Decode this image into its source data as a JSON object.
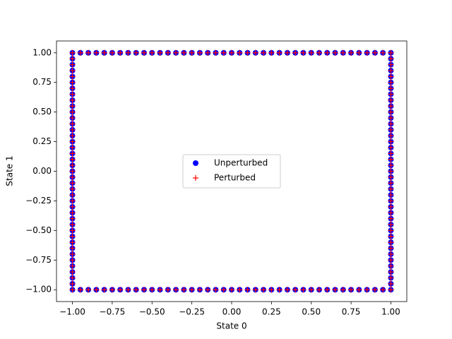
{
  "chart_data": {
    "type": "scatter",
    "xlabel": "State 0",
    "ylabel": "State 1",
    "xlim": [
      -1.1,
      1.1
    ],
    "ylim": [
      -1.1,
      1.1
    ],
    "xticks": [
      {
        "value": -1,
        "label": "−1.00"
      },
      {
        "value": -0.75,
        "label": "−0.75"
      },
      {
        "value": -0.5,
        "label": "−0.50"
      },
      {
        "value": -0.25,
        "label": "−0.25"
      },
      {
        "value": 0,
        "label": "0.00"
      },
      {
        "value": 0.25,
        "label": "0.25"
      },
      {
        "value": 0.5,
        "label": "0.50"
      },
      {
        "value": 0.75,
        "label": "0.75"
      },
      {
        "value": 1,
        "label": "1.00"
      }
    ],
    "yticks": [
      {
        "value": -1,
        "label": "−1.00"
      },
      {
        "value": -0.75,
        "label": "−0.75"
      },
      {
        "value": -0.5,
        "label": "−0.50"
      },
      {
        "value": -0.25,
        "label": "−0.25"
      },
      {
        "value": 0,
        "label": "0.00"
      },
      {
        "value": 0.25,
        "label": "0.25"
      },
      {
        "value": 0.5,
        "label": "0.50"
      },
      {
        "value": 0.75,
        "label": "0.75"
      },
      {
        "value": 1,
        "label": "1.00"
      }
    ],
    "legend": "center",
    "series": [
      {
        "name": "Unperturbed",
        "color": "#0000ff",
        "marker": "o",
        "x": [
          -1,
          -0.95,
          -0.9,
          -0.85,
          -0.8,
          -0.75,
          -0.7,
          -0.65,
          -0.6,
          -0.55,
          -0.5,
          -0.45,
          -0.4,
          -0.35,
          -0.3,
          -0.25,
          -0.2,
          -0.15,
          -0.1,
          -0.05,
          0,
          0.05,
          0.1,
          0.15,
          0.2,
          0.25,
          0.3,
          0.35,
          0.4,
          0.45,
          0.5,
          0.55,
          0.6,
          0.65,
          0.7,
          0.75,
          0.8,
          0.85,
          0.9,
          0.95,
          1,
          1,
          1,
          1,
          1,
          1,
          1,
          1,
          1,
          1,
          1,
          1,
          1,
          1,
          1,
          1,
          1,
          1,
          1,
          1,
          1,
          1,
          1,
          1,
          1,
          1,
          1,
          1,
          1,
          1,
          1,
          1,
          1,
          1,
          1,
          1,
          1,
          1,
          1,
          1,
          1,
          0.95,
          0.9,
          0.85,
          0.8,
          0.75,
          0.7,
          0.65,
          0.6,
          0.55,
          0.5,
          0.45,
          0.4,
          0.35,
          0.3,
          0.25,
          0.2,
          0.15,
          0.1,
          0.05,
          0,
          -0.05,
          -0.1,
          -0.15,
          -0.2,
          -0.25,
          -0.3,
          -0.35,
          -0.4,
          -0.45,
          -0.5,
          -0.55,
          -0.6,
          -0.65,
          -0.7,
          -0.75,
          -0.8,
          -0.85,
          -0.9,
          -0.95,
          -1,
          -1,
          -1,
          -1,
          -1,
          -1,
          -1,
          -1,
          -1,
          -1,
          -1,
          -1,
          -1,
          -1,
          -1,
          -1,
          -1,
          -1,
          -1,
          -1,
          -1,
          -1,
          -1,
          -1,
          -1,
          -1,
          -1,
          -1,
          -1,
          -1,
          -1,
          -1,
          -1,
          -1,
          -1,
          -1,
          -1,
          -1,
          -1,
          -1
        ],
        "values": [
          1,
          1,
          1,
          1,
          1,
          1,
          1,
          1,
          1,
          1,
          1,
          1,
          1,
          1,
          1,
          1,
          1,
          1,
          1,
          1,
          1,
          1,
          1,
          1,
          1,
          1,
          1,
          1,
          1,
          1,
          1,
          1,
          1,
          1,
          1,
          1,
          1,
          1,
          1,
          1,
          1,
          0.95,
          0.9,
          0.85,
          0.8,
          0.75,
          0.7,
          0.65,
          0.6,
          0.55,
          0.5,
          0.45,
          0.4,
          0.35,
          0.3,
          0.25,
          0.2,
          0.15,
          0.1,
          0.05,
          0,
          -0.05,
          -0.1,
          -0.15,
          -0.2,
          -0.25,
          -0.3,
          -0.35,
          -0.4,
          -0.45,
          -0.5,
          -0.55,
          -0.6,
          -0.65,
          -0.7,
          -0.75,
          -0.8,
          -0.85,
          -0.9,
          -0.95,
          -1,
          -1,
          -1,
          -1,
          -1,
          -1,
          -1,
          -1,
          -1,
          -1,
          -1,
          -1,
          -1,
          -1,
          -1,
          -1,
          -1,
          -1,
          -1,
          -1,
          -1,
          -1,
          -1,
          -1,
          -1,
          -1,
          -1,
          -1,
          -1,
          -1,
          -1,
          -1,
          -1,
          -1,
          -1,
          -1,
          -1,
          -1,
          -1,
          -1,
          -1,
          -0.95,
          -0.9,
          -0.85,
          -0.8,
          -0.75,
          -0.7,
          -0.65,
          -0.6,
          -0.55,
          -0.5,
          -0.45,
          -0.4,
          -0.35,
          -0.3,
          -0.25,
          -0.2,
          -0.15,
          -0.1,
          -0.05,
          0,
          0.05,
          0.1,
          0.15,
          0.2,
          0.25,
          0.3,
          0.35,
          0.4,
          0.45,
          0.5,
          0.55,
          0.6,
          0.65,
          0.7,
          0.75,
          0.8,
          0.85,
          0.9,
          0.95
        ]
      },
      {
        "name": "Perturbed",
        "color": "#ff0000",
        "marker": "+",
        "x": [
          -1,
          -0.95,
          -0.9,
          -0.85,
          -0.8,
          -0.75,
          -0.7,
          -0.65,
          -0.6,
          -0.55,
          -0.5,
          -0.45,
          -0.4,
          -0.35,
          -0.3,
          -0.25,
          -0.2,
          -0.15,
          -0.1,
          -0.05,
          0,
          0.05,
          0.1,
          0.15,
          0.2,
          0.25,
          0.3,
          0.35,
          0.4,
          0.45,
          0.5,
          0.55,
          0.6,
          0.65,
          0.7,
          0.75,
          0.8,
          0.85,
          0.9,
          0.95,
          1,
          1,
          1,
          1,
          1,
          1,
          1,
          1,
          1,
          1,
          1,
          1,
          1,
          1,
          1,
          1,
          1,
          1,
          1,
          1,
          1,
          1,
          1,
          1,
          1,
          1,
          1,
          1,
          1,
          1,
          1,
          1,
          1,
          1,
          1,
          1,
          1,
          1,
          1,
          1,
          1,
          0.95,
          0.9,
          0.85,
          0.8,
          0.75,
          0.7,
          0.65,
          0.6,
          0.55,
          0.5,
          0.45,
          0.4,
          0.35,
          0.3,
          0.25,
          0.2,
          0.15,
          0.1,
          0.05,
          0,
          -0.05,
          -0.1,
          -0.15,
          -0.2,
          -0.25,
          -0.3,
          -0.35,
          -0.4,
          -0.45,
          -0.5,
          -0.55,
          -0.6,
          -0.65,
          -0.7,
          -0.75,
          -0.8,
          -0.85,
          -0.9,
          -0.95,
          -1,
          -1,
          -1,
          -1,
          -1,
          -1,
          -1,
          -1,
          -1,
          -1,
          -1,
          -1,
          -1,
          -1,
          -1,
          -1,
          -1,
          -1,
          -1,
          -1,
          -1,
          -1,
          -1,
          -1,
          -1,
          -1,
          -1,
          -1,
          -1,
          -1,
          -1,
          -1,
          -1,
          -1,
          -1,
          -1,
          -1,
          -1,
          -1,
          -1
        ],
        "values": [
          1,
          1,
          1,
          1,
          1,
          1,
          1,
          1,
          1,
          1,
          1,
          1,
          1,
          1,
          1,
          1,
          1,
          1,
          1,
          1,
          1,
          1,
          1,
          1,
          1,
          1,
          1,
          1,
          1,
          1,
          1,
          1,
          1,
          1,
          1,
          1,
          1,
          1,
          1,
          1,
          1,
          0.95,
          0.9,
          0.85,
          0.8,
          0.75,
          0.7,
          0.65,
          0.6,
          0.55,
          0.5,
          0.45,
          0.4,
          0.35,
          0.3,
          0.25,
          0.2,
          0.15,
          0.1,
          0.05,
          0,
          -0.05,
          -0.1,
          -0.15,
          -0.2,
          -0.25,
          -0.3,
          -0.35,
          -0.4,
          -0.45,
          -0.5,
          -0.55,
          -0.6,
          -0.65,
          -0.7,
          -0.75,
          -0.8,
          -0.85,
          -0.9,
          -0.95,
          -1,
          -1,
          -1,
          -1,
          -1,
          -1,
          -1,
          -1,
          -1,
          -1,
          -1,
          -1,
          -1,
          -1,
          -1,
          -1,
          -1,
          -1,
          -1,
          -1,
          -1,
          -1,
          -1,
          -1,
          -1,
          -1,
          -1,
          -1,
          -1,
          -1,
          -1,
          -1,
          -1,
          -1,
          -1,
          -1,
          -1,
          -1,
          -1,
          -1,
          -1,
          -0.95,
          -0.9,
          -0.85,
          -0.8,
          -0.75,
          -0.7,
          -0.65,
          -0.6,
          -0.55,
          -0.5,
          -0.45,
          -0.4,
          -0.35,
          -0.3,
          -0.25,
          -0.2,
          -0.15,
          -0.1,
          -0.05,
          0,
          0.05,
          0.1,
          0.15,
          0.2,
          0.25,
          0.3,
          0.35,
          0.4,
          0.45,
          0.5,
          0.55,
          0.6,
          0.65,
          0.7,
          0.75,
          0.8,
          0.85,
          0.9,
          0.95
        ]
      }
    ]
  }
}
